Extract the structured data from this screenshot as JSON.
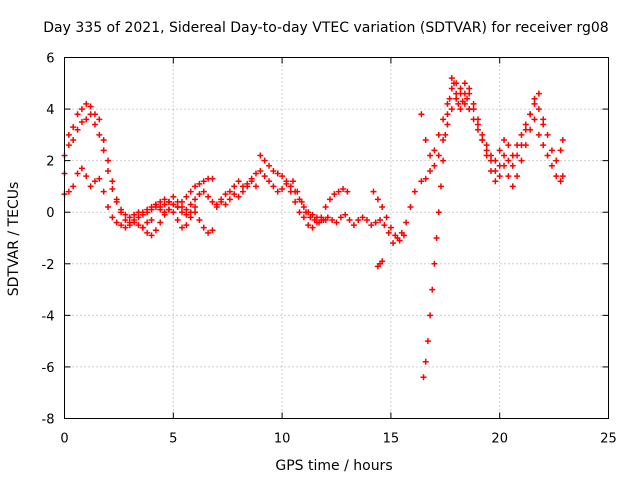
{
  "chart_data": {
    "type": "scatter",
    "title": "Day 335 of 2021, Sidereal Day-to-day VTEC variation (SDTVAR) for receiver rg08",
    "xlabel": "GPS time / hours",
    "ylabel": "SDTVAR / TECUs",
    "xlim": [
      0,
      25
    ],
    "ylim": [
      -8,
      6
    ],
    "xticks": [
      0,
      5,
      10,
      15,
      20,
      25
    ],
    "yticks": [
      -8,
      -6,
      -4,
      -2,
      0,
      2,
      4,
      6
    ],
    "grid": true,
    "marker": "+",
    "marker_color": "#ff0000",
    "series": [
      {
        "name": "trace-a",
        "x": [
          0.0,
          0.2,
          0.4,
          0.6,
          0.8,
          1.0,
          1.2,
          1.4,
          1.6,
          1.8,
          2.0,
          2.2,
          2.4,
          2.6,
          2.8,
          3.0,
          3.2,
          3.4,
          3.6,
          3.8,
          4.0,
          4.2,
          4.4,
          4.6,
          4.8,
          5.0,
          5.2,
          5.4,
          5.6,
          5.8,
          6.0
        ],
        "y": [
          1.5,
          2.6,
          3.3,
          3.8,
          4.0,
          4.2,
          4.1,
          3.8,
          3.6,
          2.8,
          2.0,
          1.2,
          0.5,
          0.0,
          -0.3,
          -0.4,
          -0.3,
          -0.2,
          -0.1,
          0.0,
          0.1,
          0.2,
          0.1,
          0.0,
          0.1,
          0.3,
          0.2,
          0.0,
          -0.1,
          0.0,
          0.2
        ]
      },
      {
        "name": "trace-b",
        "x": [
          0.0,
          0.2,
          0.4,
          0.6,
          0.8,
          1.0,
          1.2,
          1.4,
          1.6,
          1.8,
          2.0,
          2.2,
          2.4,
          2.6,
          2.8,
          3.0,
          3.2,
          3.4,
          3.6,
          3.8,
          4.0
        ],
        "y": [
          0.7,
          0.8,
          1.0,
          1.5,
          1.7,
          1.4,
          1.0,
          1.2,
          1.3,
          0.8,
          0.2,
          -0.2,
          -0.4,
          -0.5,
          -0.6,
          -0.5,
          -0.4,
          -0.5,
          -0.6,
          -0.4,
          -0.3
        ]
      },
      {
        "name": "trace-c",
        "x": [
          0.0,
          0.2,
          0.4,
          0.6,
          0.8,
          1.0,
          1.2,
          1.4,
          1.6,
          1.8,
          2.0,
          2.2,
          2.4,
          2.6,
          2.8,
          3.0,
          3.2,
          3.4,
          3.6,
          3.8,
          4.0,
          4.2,
          4.4,
          4.6,
          4.8,
          5.0,
          5.2,
          5.4,
          5.6,
          5.8,
          6.0,
          6.2,
          6.4,
          6.6,
          6.8
        ],
        "y": [
          2.2,
          3.0,
          2.8,
          3.2,
          3.5,
          3.6,
          3.8,
          3.4,
          3.0,
          2.4,
          1.6,
          0.9,
          0.4,
          0.1,
          -0.1,
          -0.2,
          -0.1,
          0.0,
          0.0,
          0.1,
          0.2,
          0.3,
          0.4,
          0.5,
          0.4,
          0.3,
          0.2,
          0.4,
          0.6,
          0.8,
          1.0,
          1.1,
          1.2,
          1.3,
          1.3
        ]
      },
      {
        "name": "trace-d",
        "x": [
          3.6,
          3.8,
          4.0,
          4.2,
          4.4,
          4.6,
          4.8,
          5.0,
          5.2,
          5.4,
          5.6,
          5.8,
          6.0,
          6.2,
          6.4,
          6.6,
          6.8
        ],
        "y": [
          -0.6,
          -0.8,
          -0.9,
          -0.7,
          -0.4,
          -0.1,
          0.1,
          0.0,
          -0.3,
          -0.6,
          -0.5,
          -0.2,
          0.0,
          -0.3,
          -0.6,
          -0.8,
          -0.7
        ]
      },
      {
        "name": "trace-e",
        "x": [
          4.2,
          4.4,
          4.6,
          4.8,
          5.0,
          5.2,
          5.4,
          5.6,
          5.8,
          6.0,
          6.2,
          6.4,
          6.6,
          6.8,
          7.0,
          7.2,
          7.4,
          7.6,
          7.8,
          8.0,
          8.2,
          8.4,
          8.6,
          8.8,
          9.0,
          9.2,
          9.4,
          9.6,
          9.8,
          10.0,
          10.2,
          10.4,
          10.6,
          10.8,
          11.0,
          11.2,
          11.4,
          11.6,
          11.8,
          12.0
        ],
        "y": [
          0.3,
          0.2,
          0.3,
          0.4,
          0.6,
          0.4,
          0.2,
          0.1,
          0.3,
          0.5,
          0.7,
          0.8,
          0.6,
          0.4,
          0.3,
          0.5,
          0.7,
          0.8,
          1.0,
          1.2,
          1.0,
          1.1,
          1.3,
          1.5,
          2.2,
          2.0,
          1.8,
          1.6,
          1.5,
          1.4,
          1.2,
          1.0,
          0.8,
          0.5,
          0.2,
          0.0,
          -0.1,
          -0.2,
          -0.3,
          -0.3
        ]
      },
      {
        "name": "trace-f",
        "x": [
          7.0,
          7.2,
          7.4,
          7.6,
          7.8,
          8.0,
          8.2,
          8.4,
          8.6,
          8.8,
          9.0,
          9.2,
          9.4,
          9.6,
          9.8,
          10.0,
          10.2,
          10.4,
          10.6,
          10.8,
          11.0,
          11.2,
          11.4,
          11.6,
          11.8,
          12.0,
          12.2,
          12.4,
          12.6,
          12.8,
          13.0
        ],
        "y": [
          0.2,
          0.4,
          0.3,
          0.5,
          0.7,
          0.6,
          0.8,
          1.0,
          1.2,
          1.0,
          1.6,
          1.4,
          1.2,
          1.0,
          0.8,
          0.9,
          1.1,
          0.8,
          0.4,
          0.0,
          -0.2,
          -0.5,
          -0.6,
          -0.4,
          -0.2,
          0.2,
          0.5,
          0.7,
          0.8,
          0.9,
          0.8
        ]
      },
      {
        "name": "trace-g",
        "x": [
          10.5,
          10.7,
          10.9,
          11.1,
          11.3,
          11.5,
          11.7,
          11.9,
          12.1,
          12.3,
          12.5,
          12.7,
          12.9,
          13.1,
          13.3,
          13.5,
          13.7,
          13.9,
          14.1,
          14.3,
          14.5,
          14.7,
          14.9,
          15.1,
          15.3,
          15.5,
          15.7,
          15.9,
          16.1
        ],
        "y": [
          1.2,
          0.8,
          0.4,
          0.0,
          -0.2,
          -0.3,
          -0.4,
          -0.3,
          -0.2,
          -0.3,
          -0.4,
          -0.2,
          -0.1,
          -0.3,
          -0.5,
          -0.3,
          -0.2,
          -0.3,
          -0.5,
          -0.4,
          -0.3,
          -0.5,
          -0.8,
          -1.2,
          -1.0,
          -0.8,
          -0.4,
          0.2,
          0.8
        ]
      },
      {
        "name": "trace-h",
        "x": [
          14.2,
          14.4,
          14.6,
          14.8,
          15.0,
          15.2,
          15.4,
          15.6
        ],
        "y": [
          0.8,
          0.5,
          0.2,
          -0.2,
          -0.6,
          -0.9,
          -1.1,
          -0.9
        ]
      },
      {
        "name": "trace-i",
        "x": [
          14.4,
          14.5,
          14.6
        ],
        "y": [
          -2.1,
          -2.0,
          -1.9
        ]
      },
      {
        "name": "trace-j",
        "x": [
          16.5,
          16.6,
          16.7,
          16.8,
          16.9,
          17.0,
          17.1,
          17.2,
          17.3,
          17.4,
          17.5,
          17.6,
          17.7,
          17.8,
          17.9,
          18.0,
          18.1,
          18.2,
          18.3,
          18.4,
          18.5,
          18.6
        ],
        "y": [
          -6.4,
          -5.8,
          -5.0,
          -4.0,
          -3.0,
          -2.0,
          -1.0,
          0.0,
          1.0,
          2.0,
          3.0,
          3.8,
          4.4,
          4.8,
          5.0,
          4.6,
          4.2,
          4.0,
          4.3,
          4.6,
          4.4,
          4.0
        ]
      },
      {
        "name": "trace-k",
        "x": [
          16.4,
          16.6,
          16.8,
          17.0,
          17.2,
          17.4,
          17.6,
          17.8,
          18.0,
          18.2,
          18.4,
          18.6,
          18.8,
          19.0,
          19.2,
          19.4,
          19.6,
          19.8,
          20.0,
          20.2,
          20.4,
          20.6,
          20.8,
          21.0,
          21.2,
          21.4,
          21.6,
          21.8,
          22.0,
          22.2,
          22.4,
          22.6,
          22.8,
          22.9
        ],
        "y": [
          3.8,
          2.8,
          2.2,
          2.4,
          3.0,
          3.6,
          4.2,
          5.2,
          5.0,
          4.6,
          4.2,
          4.0,
          3.6,
          3.2,
          2.8,
          2.4,
          2.0,
          1.6,
          1.8,
          2.2,
          2.0,
          1.8,
          2.2,
          2.6,
          3.2,
          3.8,
          4.2,
          4.6,
          3.6,
          3.0,
          2.4,
          2.0,
          2.4,
          2.8
        ]
      },
      {
        "name": "trace-l",
        "x": [
          16.4,
          16.6,
          16.8,
          17.0,
          17.2,
          17.4,
          17.6,
          17.8,
          18.0,
          18.2,
          18.4,
          18.6,
          18.8,
          19.0,
          19.2,
          19.4,
          19.6,
          19.8,
          20.0,
          20.2,
          20.4,
          20.6,
          20.8,
          21.0,
          21.2,
          21.4,
          21.6,
          21.8,
          22.0,
          22.2,
          22.4,
          22.6,
          22.8,
          22.9
        ],
        "y": [
          1.2,
          1.3,
          1.6,
          1.8,
          2.2,
          2.8,
          3.4,
          4.0,
          4.4,
          4.8,
          5.0,
          4.6,
          4.0,
          3.4,
          2.8,
          2.2,
          1.6,
          1.2,
          1.4,
          1.8,
          1.4,
          1.0,
          1.4,
          2.0,
          2.6,
          3.2,
          3.6,
          3.0,
          2.6,
          2.2,
          1.8,
          1.4,
          1.2,
          1.4
        ]
      },
      {
        "name": "trace-m",
        "x": [
          18.6,
          18.8,
          19.0,
          19.2,
          19.4,
          19.6,
          19.8,
          20.0,
          20.2,
          20.4,
          20.6,
          20.8,
          21.0,
          21.2,
          21.4,
          21.6,
          21.8,
          22.0
        ],
        "y": [
          4.8,
          4.2,
          3.6,
          3.0,
          2.6,
          2.2,
          2.0,
          2.4,
          2.8,
          2.6,
          2.2,
          2.6,
          3.0,
          3.4,
          3.8,
          4.4,
          4.0,
          3.4
        ]
      }
    ]
  }
}
